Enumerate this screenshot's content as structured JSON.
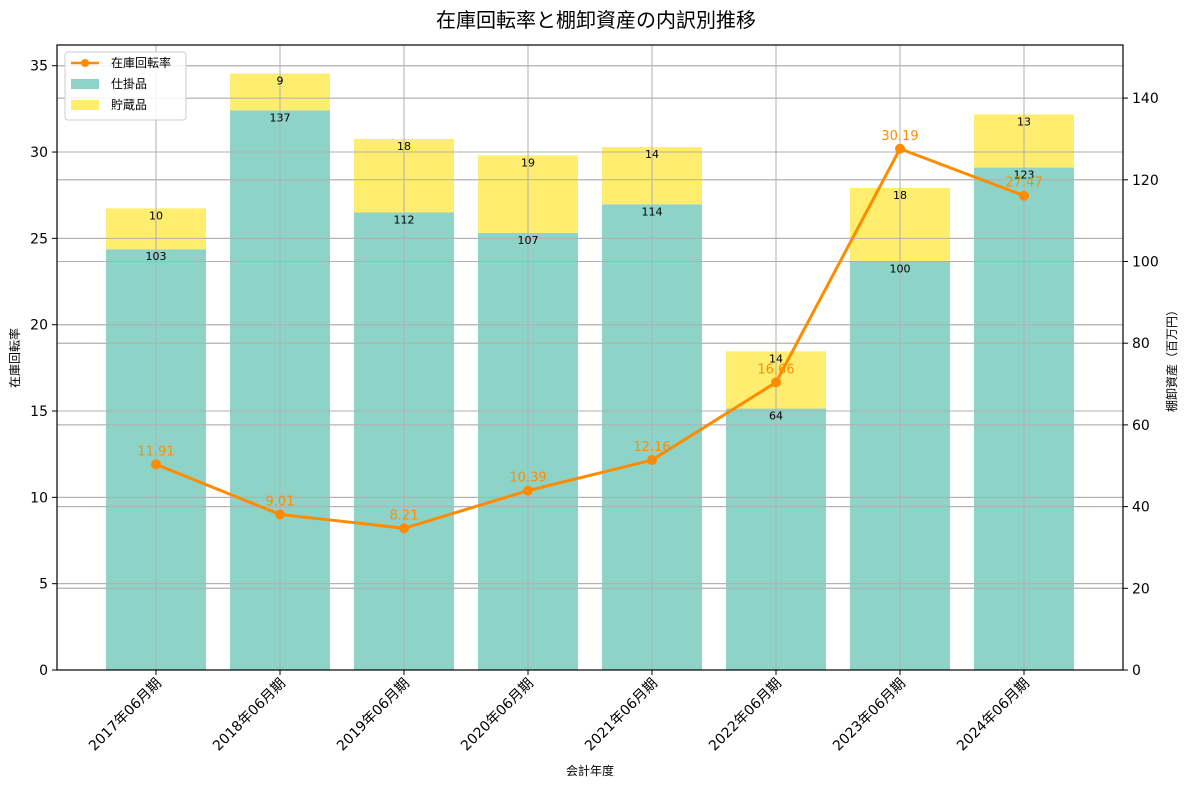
{
  "chart_data": {
    "type": "bar",
    "subtype": "stacked bar + line (dual axis)",
    "title": "在庫回転率と棚卸資産の内訳別推移",
    "xlabel": "会計年度",
    "ylabel_left": "在庫回転率",
    "ylabel_right": "棚卸資産（百万円）",
    "categories": [
      "2017年06月期",
      "2018年06月期",
      "2019年06月期",
      "2020年06月期",
      "2021年06月期",
      "2022年06月期",
      "2023年06月期",
      "2024年06月期"
    ],
    "series": [
      {
        "name": "仕掛品",
        "type": "bar",
        "axis": "right",
        "stack": "inventory",
        "color": "#8dd3c7",
        "values": [
          103,
          137,
          112,
          107,
          114,
          64,
          100,
          123
        ]
      },
      {
        "name": "貯蔵品",
        "type": "bar",
        "axis": "right",
        "stack": "inventory",
        "color": "#ffed6f",
        "values": [
          10,
          9,
          18,
          19,
          14,
          14,
          18,
          13
        ]
      },
      {
        "name": "在庫回転率",
        "type": "line",
        "axis": "left",
        "color": "#ff8c00",
        "marker": "circle",
        "values": [
          11.91,
          9.01,
          8.21,
          10.39,
          12.16,
          16.66,
          30.19,
          27.47
        ]
      }
    ],
    "ylim_left": [
      0,
      36.2
    ],
    "yticks_left": [
      0,
      5,
      10,
      15,
      20,
      25,
      30,
      35
    ],
    "ylim_right": [
      0,
      153
    ],
    "yticks_right": [
      0,
      20,
      40,
      60,
      80,
      100,
      120,
      140
    ],
    "grid": true,
    "legend": {
      "position": "upper left",
      "entries": [
        "在庫回転率",
        "仕掛品",
        "貯蔵品"
      ]
    }
  }
}
